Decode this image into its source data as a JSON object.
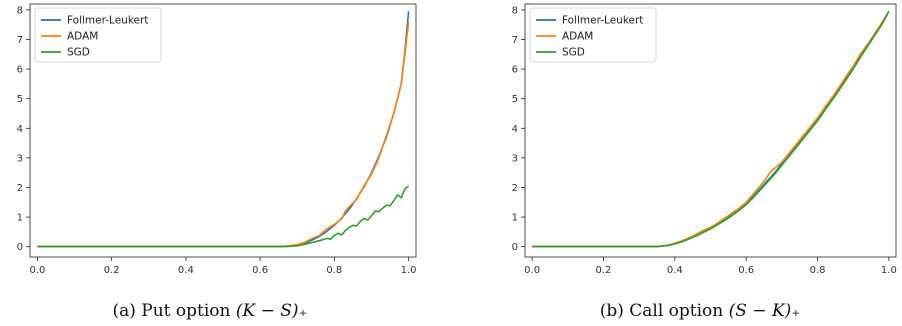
{
  "colors": {
    "follmer": "#1f77b4",
    "adam": "#ff7f0e",
    "sgd": "#2ca02c"
  },
  "chart_data": [
    {
      "type": "line",
      "caption": "(a) Put option (K − S)₊",
      "caption_prefix": "(a) Put option ",
      "caption_math": "(K − S)₊",
      "xlim": [
        -0.02,
        1.02
      ],
      "ylim": [
        -0.35,
        8.2
      ],
      "x_ticks": [
        "0.0",
        "0.2",
        "0.4",
        "0.6",
        "0.8",
        "1.0"
      ],
      "y_ticks": [
        "0",
        "1",
        "2",
        "3",
        "4",
        "5",
        "6",
        "7",
        "8"
      ],
      "grid": false,
      "legend_position": "top-left",
      "series": [
        {
          "name": "Follmer-Leukert",
          "color": "#1f77b4",
          "points": [
            [
              0.0,
              0
            ],
            [
              0.65,
              0
            ],
            [
              0.68,
              0.02
            ],
            [
              0.7,
              0.05
            ],
            [
              0.72,
              0.12
            ],
            [
              0.74,
              0.22
            ],
            [
              0.76,
              0.35
            ],
            [
              0.78,
              0.52
            ],
            [
              0.8,
              0.72
            ],
            [
              0.82,
              0.97
            ],
            [
              0.84,
              1.27
            ],
            [
              0.86,
              1.62
            ],
            [
              0.88,
              2.02
            ],
            [
              0.9,
              2.5
            ],
            [
              0.92,
              3.05
            ],
            [
              0.94,
              3.7
            ],
            [
              0.96,
              4.5
            ],
            [
              0.98,
              5.5
            ],
            [
              0.99,
              6.6
            ],
            [
              1.0,
              7.95
            ]
          ]
        },
        {
          "name": "ADAM",
          "color": "#ff7f0e",
          "points": [
            [
              0.0,
              0
            ],
            [
              0.65,
              0
            ],
            [
              0.68,
              0.03
            ],
            [
              0.7,
              0.07
            ],
            [
              0.72,
              0.15
            ],
            [
              0.74,
              0.28
            ],
            [
              0.76,
              0.38
            ],
            [
              0.77,
              0.5
            ],
            [
              0.78,
              0.6
            ],
            [
              0.8,
              0.75
            ],
            [
              0.82,
              0.95
            ],
            [
              0.83,
              1.2
            ],
            [
              0.84,
              1.35
            ],
            [
              0.86,
              1.6
            ],
            [
              0.88,
              2.05
            ],
            [
              0.9,
              2.45
            ],
            [
              0.92,
              3.0
            ],
            [
              0.94,
              3.75
            ],
            [
              0.96,
              4.5
            ],
            [
              0.98,
              5.5
            ],
            [
              0.99,
              6.5
            ],
            [
              1.0,
              7.6
            ]
          ]
        },
        {
          "name": "SGD",
          "color": "#2ca02c",
          "points": [
            [
              0.0,
              0
            ],
            [
              0.67,
              0
            ],
            [
              0.7,
              0.03
            ],
            [
              0.72,
              0.08
            ],
            [
              0.74,
              0.14
            ],
            [
              0.76,
              0.2
            ],
            [
              0.78,
              0.28
            ],
            [
              0.79,
              0.25
            ],
            [
              0.8,
              0.38
            ],
            [
              0.81,
              0.45
            ],
            [
              0.82,
              0.4
            ],
            [
              0.83,
              0.55
            ],
            [
              0.84,
              0.65
            ],
            [
              0.85,
              0.72
            ],
            [
              0.86,
              0.7
            ],
            [
              0.87,
              0.85
            ],
            [
              0.88,
              0.95
            ],
            [
              0.89,
              0.9
            ],
            [
              0.9,
              1.05
            ],
            [
              0.91,
              1.2
            ],
            [
              0.92,
              1.18
            ],
            [
              0.93,
              1.3
            ],
            [
              0.94,
              1.4
            ],
            [
              0.95,
              1.38
            ],
            [
              0.96,
              1.55
            ],
            [
              0.97,
              1.75
            ],
            [
              0.98,
              1.65
            ],
            [
              0.99,
              1.95
            ],
            [
              1.0,
              2.05
            ]
          ]
        }
      ]
    },
    {
      "type": "line",
      "caption": "(b) Call option (S − K)₊",
      "caption_prefix": "(b) Call option ",
      "caption_math": "(S − K)₊",
      "xlim": [
        -0.02,
        1.02
      ],
      "ylim": [
        -0.35,
        8.2
      ],
      "x_ticks": [
        "0.0",
        "0.2",
        "0.4",
        "0.6",
        "0.8",
        "1.0"
      ],
      "y_ticks": [
        "0",
        "1",
        "2",
        "3",
        "4",
        "5",
        "6",
        "7",
        "8"
      ],
      "grid": false,
      "legend_position": "top-left",
      "series": [
        {
          "name": "Follmer-Leukert",
          "color": "#1f77b4",
          "points": [
            [
              0.0,
              0
            ],
            [
              0.35,
              0
            ],
            [
              0.38,
              0.04
            ],
            [
              0.4,
              0.1
            ],
            [
              0.42,
              0.18
            ],
            [
              0.44,
              0.28
            ],
            [
              0.46,
              0.38
            ],
            [
              0.48,
              0.5
            ],
            [
              0.5,
              0.62
            ],
            [
              0.52,
              0.76
            ],
            [
              0.55,
              0.98
            ],
            [
              0.58,
              1.24
            ],
            [
              0.6,
              1.45
            ],
            [
              0.62,
              1.7
            ],
            [
              0.65,
              2.1
            ],
            [
              0.68,
              2.5
            ],
            [
              0.7,
              2.8
            ],
            [
              0.72,
              3.1
            ],
            [
              0.75,
              3.55
            ],
            [
              0.78,
              4.0
            ],
            [
              0.8,
              4.3
            ],
            [
              0.82,
              4.65
            ],
            [
              0.85,
              5.15
            ],
            [
              0.88,
              5.7
            ],
            [
              0.9,
              6.05
            ],
            [
              0.92,
              6.45
            ],
            [
              0.95,
              7.0
            ],
            [
              0.98,
              7.55
            ],
            [
              1.0,
              7.95
            ]
          ]
        },
        {
          "name": "ADAM",
          "color": "#ff7f0e",
          "points": [
            [
              0.0,
              0
            ],
            [
              0.35,
              0
            ],
            [
              0.38,
              0.05
            ],
            [
              0.4,
              0.12
            ],
            [
              0.42,
              0.2
            ],
            [
              0.44,
              0.3
            ],
            [
              0.46,
              0.42
            ],
            [
              0.48,
              0.55
            ],
            [
              0.5,
              0.65
            ],
            [
              0.52,
              0.8
            ],
            [
              0.55,
              1.05
            ],
            [
              0.58,
              1.3
            ],
            [
              0.6,
              1.5
            ],
            [
              0.62,
              1.78
            ],
            [
              0.65,
              2.2
            ],
            [
              0.67,
              2.55
            ],
            [
              0.7,
              2.85
            ],
            [
              0.72,
              3.15
            ],
            [
              0.75,
              3.6
            ],
            [
              0.78,
              4.05
            ],
            [
              0.8,
              4.35
            ],
            [
              0.82,
              4.7
            ],
            [
              0.85,
              5.2
            ],
            [
              0.88,
              5.75
            ],
            [
              0.9,
              6.1
            ],
            [
              0.92,
              6.5
            ],
            [
              0.95,
              7.0
            ],
            [
              0.98,
              7.55
            ],
            [
              1.0,
              7.95
            ]
          ]
        },
        {
          "name": "SGD",
          "color": "#2ca02c",
          "points": [
            [
              0.0,
              0
            ],
            [
              0.35,
              0
            ],
            [
              0.38,
              0.04
            ],
            [
              0.4,
              0.09
            ],
            [
              0.42,
              0.16
            ],
            [
              0.44,
              0.26
            ],
            [
              0.46,
              0.36
            ],
            [
              0.48,
              0.48
            ],
            [
              0.5,
              0.6
            ],
            [
              0.52,
              0.74
            ],
            [
              0.55,
              0.96
            ],
            [
              0.58,
              1.22
            ],
            [
              0.6,
              1.42
            ],
            [
              0.62,
              1.66
            ],
            [
              0.65,
              2.05
            ],
            [
              0.68,
              2.45
            ],
            [
              0.7,
              2.75
            ],
            [
              0.72,
              3.05
            ],
            [
              0.75,
              3.5
            ],
            [
              0.78,
              3.95
            ],
            [
              0.8,
              4.25
            ],
            [
              0.82,
              4.6
            ],
            [
              0.85,
              5.1
            ],
            [
              0.88,
              5.65
            ],
            [
              0.9,
              6.0
            ],
            [
              0.92,
              6.4
            ],
            [
              0.95,
              6.95
            ],
            [
              0.98,
              7.5
            ],
            [
              1.0,
              7.95
            ]
          ]
        }
      ]
    }
  ]
}
